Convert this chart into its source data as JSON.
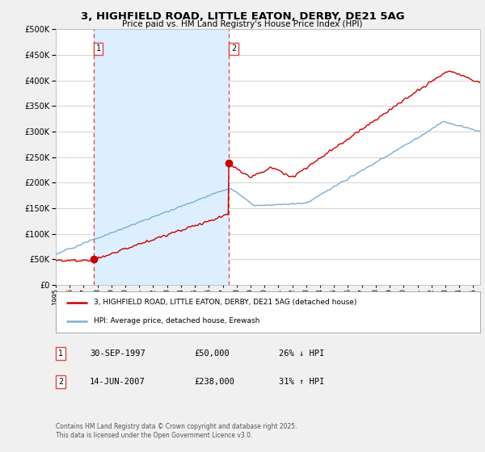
{
  "title": "3, HIGHFIELD ROAD, LITTLE EATON, DERBY, DE21 5AG",
  "subtitle": "Price paid vs. HM Land Registry's House Price Index (HPI)",
  "legend_line1": "3, HIGHFIELD ROAD, LITTLE EATON, DERBY, DE21 5AG (detached house)",
  "legend_line2": "HPI: Average price, detached house, Erewash",
  "table_rows": [
    {
      "num": "1",
      "date": "30-SEP-1997",
      "price": "£50,000",
      "hpi": "26% ↓ HPI"
    },
    {
      "num": "2",
      "date": "14-JUN-2007",
      "price": "£238,000",
      "hpi": "31% ↑ HPI"
    }
  ],
  "footer": "Contains HM Land Registry data © Crown copyright and database right 2025.\nThis data is licensed under the Open Government Licence v3.0.",
  "vline1_year": 1997.75,
  "vline2_year": 2007.45,
  "sale1_year": 1997.75,
  "sale1_price": 50000,
  "sale2_year": 2007.45,
  "sale2_price": 238000,
  "red_color": "#cc0000",
  "blue_color": "#7aadd4",
  "vline_color": "#dd4444",
  "shade_color": "#ddeeff",
  "background_color": "#f0f0f0",
  "plot_bg_color": "#ffffff",
  "ylim": [
    0,
    500000
  ],
  "xlim_start": 1995.0,
  "xlim_end": 2025.5
}
